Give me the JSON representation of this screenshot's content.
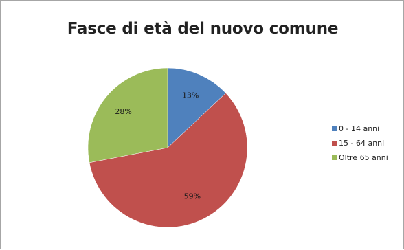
{
  "chart_data": {
    "type": "pie",
    "title": "Fasce di età del nuovo comune",
    "categories": [
      "0 - 14 anni",
      "15 - 64 anni",
      "Oltre 65 anni"
    ],
    "values": [
      13,
      59,
      28
    ],
    "labels": [
      "13%",
      "59%",
      "28%"
    ],
    "colors": [
      "#4f81bd",
      "#c0504d",
      "#9bbb59"
    ],
    "legend_position": "right"
  }
}
